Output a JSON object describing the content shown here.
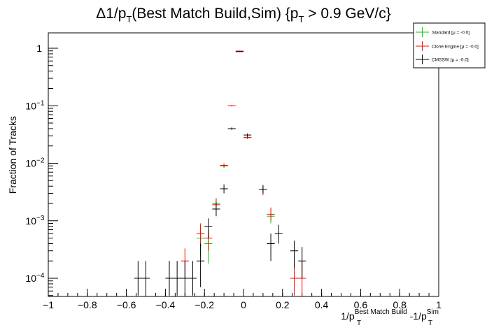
{
  "chart_data": {
    "type": "scatter",
    "title": {
      "prefix": "Δ1/p",
      "sub1": "T",
      "middle": "(Best Match Build,Sim) {p",
      "sub2": "T",
      "suffix": " > 0.9 GeV/c}"
    },
    "xlabel": {
      "part1": "1/p",
      "sub1": "T",
      "sup1": "Best Match Build",
      "part2": " -1/p",
      "sub2": "T",
      "sup2": "Sim"
    },
    "ylabel": "Fraction of Tracks",
    "x_scale": "linear",
    "y_scale": "log",
    "xlim": [
      -1,
      1
    ],
    "ylim": [
      5e-05,
      1.8
    ],
    "x_ticks": [
      "−1",
      "−0.8",
      "−0.6",
      "−0.4",
      "−0.2",
      "0",
      "0.2",
      "0.4",
      "0.6",
      "0.8",
      "1"
    ],
    "y_ticks": [
      {
        "base": "1",
        "exp": ""
      },
      {
        "base": "10",
        "exp": "−1"
      },
      {
        "base": "10",
        "exp": "−2"
      },
      {
        "base": "10",
        "exp": "−3"
      },
      {
        "base": "10",
        "exp": "−4"
      }
    ],
    "bin_width": 0.04,
    "legend_position": "top-right",
    "series": [
      {
        "name": "Standard",
        "stat": "[μ = -0.0]",
        "color": "#00cc00",
        "points": [
          {
            "x": -0.22,
            "y": 0.0005,
            "ylo": 0.00025,
            "yhi": 0.0008
          },
          {
            "x": -0.18,
            "y": 0.0004,
            "ylo": 0.00018,
            "yhi": 0.0006
          },
          {
            "x": -0.14,
            "y": 0.002,
            "ylo": 0.0016,
            "yhi": 0.0025
          },
          {
            "x": -0.1,
            "y": 0.009,
            "ylo": 0.0082,
            "yhi": 0.0099
          },
          {
            "x": -0.02,
            "y": 0.88,
            "ylo": 0.87,
            "yhi": 0.89
          },
          {
            "x": 0.02,
            "y": 0.028,
            "ylo": 0.0265,
            "yhi": 0.0295
          },
          {
            "x": 0.02,
            "y": 0.028,
            "ylo": 0.0265,
            "yhi": 0.0295
          },
          {
            "x": 0.1,
            "y": 0.0035,
            "ylo": 0.003,
            "yhi": 0.0041
          },
          {
            "x": 0.14,
            "y": 0.0012,
            "ylo": 0.0009,
            "yhi": 0.0016
          }
        ]
      },
      {
        "name": "Clone Engine",
        "stat": "[μ = -0.0]",
        "color": "#ff0000",
        "points": [
          {
            "x": -0.38,
            "y": 0.0001,
            "ylo": 5e-05,
            "yhi": 0.0002
          },
          {
            "x": -0.3,
            "y": 0.0002,
            "ylo": 0.0001,
            "yhi": 0.00033
          },
          {
            "x": -0.22,
            "y": 0.0006,
            "ylo": 0.00035,
            "yhi": 0.0009
          },
          {
            "x": -0.18,
            "y": 0.0005,
            "ylo": 0.0003,
            "yhi": 0.0007
          },
          {
            "x": -0.14,
            "y": 0.0019,
            "ylo": 0.0015,
            "yhi": 0.0024
          },
          {
            "x": -0.1,
            "y": 0.0092,
            "ylo": 0.0085,
            "yhi": 0.0099
          },
          {
            "x": -0.06,
            "y": 0.1,
            "ylo": 0.097,
            "yhi": 0.103
          },
          {
            "x": -0.02,
            "y": 0.87,
            "ylo": 0.86,
            "yhi": 0.88
          },
          {
            "x": 0.02,
            "y": 0.028,
            "ylo": 0.0265,
            "yhi": 0.0295
          },
          {
            "x": 0.1,
            "y": 0.0035,
            "ylo": 0.0028,
            "yhi": 0.0042
          },
          {
            "x": 0.14,
            "y": 0.0013,
            "ylo": 0.001,
            "yhi": 0.0017
          },
          {
            "x": 0.26,
            "y": 0.0001,
            "ylo": 5e-05,
            "yhi": 0.0002
          },
          {
            "x": 0.3,
            "y": 0.0001,
            "ylo": 5e-05,
            "yhi": 0.0002
          }
        ]
      },
      {
        "name": "CMSSW",
        "stat": "[μ = -0.0]",
        "color": "#000000",
        "points": [
          {
            "x": -0.54,
            "y": 0.0001,
            "ylo": 5e-05,
            "yhi": 0.0002
          },
          {
            "x": -0.5,
            "y": 0.0001,
            "ylo": 5e-05,
            "yhi": 0.0002
          },
          {
            "x": -0.38,
            "y": 0.0001,
            "ylo": 5e-05,
            "yhi": 0.0002
          },
          {
            "x": -0.34,
            "y": 0.0001,
            "ylo": 5e-05,
            "yhi": 0.0002
          },
          {
            "x": -0.3,
            "y": 0.0001,
            "ylo": 5e-05,
            "yhi": 0.0002
          },
          {
            "x": -0.26,
            "y": 0.0001,
            "ylo": 5e-05,
            "yhi": 0.0002
          },
          {
            "x": -0.22,
            "y": 0.0002,
            "ylo": 7e-05,
            "yhi": 0.0004
          },
          {
            "x": -0.18,
            "y": 0.0008,
            "ylo": 0.0005,
            "yhi": 0.0011
          },
          {
            "x": -0.14,
            "y": 0.0016,
            "ylo": 0.0012,
            "yhi": 0.0021
          },
          {
            "x": -0.1,
            "y": 0.0036,
            "ylo": 0.003,
            "yhi": 0.0043
          },
          {
            "x": -0.06,
            "y": 0.04,
            "ylo": 0.038,
            "yhi": 0.042
          },
          {
            "x": -0.02,
            "y": 0.89,
            "ylo": 0.88,
            "yhi": 0.9
          },
          {
            "x": 0.02,
            "y": 0.031,
            "ylo": 0.029,
            "yhi": 0.033
          },
          {
            "x": 0.1,
            "y": 0.0035,
            "ylo": 0.003,
            "yhi": 0.0041
          },
          {
            "x": 0.14,
            "y": 0.0004,
            "ylo": 0.0002,
            "yhi": 0.0006
          },
          {
            "x": 0.18,
            "y": 0.0006,
            "ylo": 0.0004,
            "yhi": 0.00085
          },
          {
            "x": 0.26,
            "y": 0.0003,
            "ylo": 0.00015,
            "yhi": 0.00045
          },
          {
            "x": 0.3,
            "y": 0.0002,
            "ylo": 0.0001,
            "yhi": 0.00035
          }
        ]
      }
    ]
  }
}
